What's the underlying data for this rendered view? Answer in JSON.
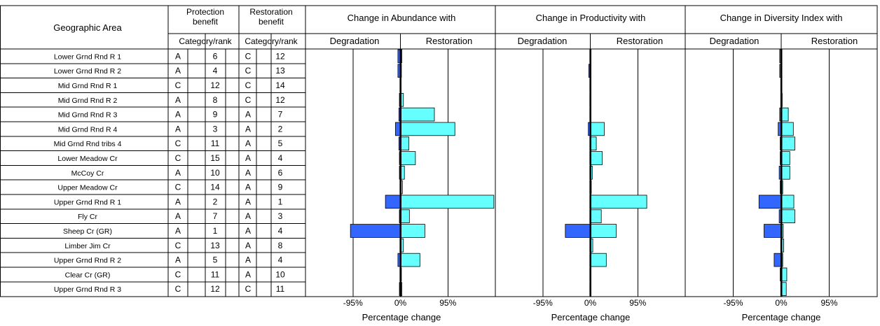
{
  "headers": {
    "geo_area": "Geographic Area",
    "protection_line1": "Protection",
    "protection_line2": "benefit",
    "restoration_line1": "Restoration",
    "restoration_line2": "benefit",
    "category_rank_protection": "Category/rank",
    "category_rank_restoration": "Category/rank",
    "degradation": "Degradation",
    "restoration": "Restoration"
  },
  "rows": [
    {
      "area": "Lower Grnd Rnd R 1",
      "p_cat": "A",
      "p_rank": "6",
      "r_cat": "C",
      "r_rank": "12"
    },
    {
      "area": "Lower Grnd Rnd R 2",
      "p_cat": "A",
      "p_rank": "4",
      "r_cat": "C",
      "r_rank": "13"
    },
    {
      "area": "Mid Grnd Rnd R 1",
      "p_cat": "C",
      "p_rank": "12",
      "r_cat": "C",
      "r_rank": "14"
    },
    {
      "area": "Mid Grnd Rnd R 2",
      "p_cat": "A",
      "p_rank": "8",
      "r_cat": "C",
      "r_rank": "12"
    },
    {
      "area": "Mid Grnd Rnd R 3",
      "p_cat": "A",
      "p_rank": "9",
      "r_cat": "A",
      "r_rank": "7"
    },
    {
      "area": "Mid Grnd Rnd R 4",
      "p_cat": "A",
      "p_rank": "3",
      "r_cat": "A",
      "r_rank": "2"
    },
    {
      "area": "Mid Grnd Rnd tribs 4",
      "p_cat": "C",
      "p_rank": "11",
      "r_cat": "A",
      "r_rank": "5"
    },
    {
      "area": "Lower Meadow Cr",
      "p_cat": "C",
      "p_rank": "15",
      "r_cat": "A",
      "r_rank": "4"
    },
    {
      "area": "McCoy Cr",
      "p_cat": "A",
      "p_rank": "10",
      "r_cat": "A",
      "r_rank": "6"
    },
    {
      "area": "Upper Meadow Cr",
      "p_cat": "C",
      "p_rank": "14",
      "r_cat": "A",
      "r_rank": "9"
    },
    {
      "area": "Upper Grnd Rnd R 1",
      "p_cat": "A",
      "p_rank": "2",
      "r_cat": "A",
      "r_rank": "1"
    },
    {
      "area": "Fly Cr",
      "p_cat": "A",
      "p_rank": "7",
      "r_cat": "A",
      "r_rank": "3"
    },
    {
      "area": "Sheep Cr (GR)",
      "p_cat": "A",
      "p_rank": "1",
      "r_cat": "A",
      "r_rank": "4"
    },
    {
      "area": "Limber Jim Cr",
      "p_cat": "C",
      "p_rank": "13",
      "r_cat": "A",
      "r_rank": "8"
    },
    {
      "area": "Upper Grnd Rnd R 2",
      "p_cat": "A",
      "p_rank": "5",
      "r_cat": "A",
      "r_rank": "4"
    },
    {
      "area": "Clear Cr (GR)",
      "p_cat": "C",
      "p_rank": "11",
      "r_cat": "A",
      "r_rank": "10"
    },
    {
      "area": "Upper Grnd Rnd R 3",
      "p_cat": "C",
      "p_rank": "12",
      "r_cat": "C",
      "r_rank": "11"
    }
  ],
  "colors": {
    "degradation": "#3366ff",
    "restoration": "#66ffff",
    "grid": "#000000"
  },
  "chart_data": [
    {
      "type": "bar",
      "orientation": "horizontal",
      "title": "Change in Abundance with",
      "xlabel": "Percentage change",
      "ticks": [
        "-95%",
        "0%",
        "95%"
      ],
      "tick_values": [
        -95,
        0,
        95
      ],
      "xlim": [
        -190,
        190
      ],
      "grid": true,
      "series": [
        {
          "name": "Degradation",
          "values": [
            -5,
            -5,
            -1,
            -2,
            -3,
            -10,
            -3,
            -2,
            -2,
            -1,
            -30,
            -2,
            -100,
            -1,
            -5,
            -1,
            -2
          ]
        },
        {
          "name": "Restoration",
          "values": [
            3,
            2,
            1,
            6,
            68,
            109,
            17,
            30,
            8,
            4,
            187,
            18,
            49,
            6,
            39,
            2,
            3
          ]
        }
      ]
    },
    {
      "type": "bar",
      "orientation": "horizontal",
      "title": "Change in Productivity with",
      "xlabel": "Percentage change",
      "ticks": [
        "-95%",
        "0%",
        "95%"
      ],
      "tick_values": [
        -95,
        0,
        95
      ],
      "xlim": [
        -190,
        190
      ],
      "grid": true,
      "series": [
        {
          "name": "Degradation",
          "values": [
            -1,
            -3,
            -1,
            -1,
            -1,
            -4,
            -1,
            -1,
            -1,
            -1,
            -1,
            -1,
            -50,
            -1,
            -1,
            -1,
            -1
          ]
        },
        {
          "name": "Restoration",
          "values": [
            0,
            0,
            0,
            0,
            0,
            28,
            12,
            24,
            4,
            2,
            113,
            22,
            52,
            5,
            32,
            1,
            0
          ]
        }
      ]
    },
    {
      "type": "bar",
      "orientation": "horizontal",
      "title": "Change in Diversity Index with",
      "xlabel": "Percentage change",
      "ticks": [
        "-95%",
        "0%",
        "95%"
      ],
      "tick_values": [
        -95,
        0,
        95
      ],
      "xlim": [
        -190,
        190
      ],
      "grid": true,
      "series": [
        {
          "name": "Degradation",
          "values": [
            -3,
            -3,
            -1,
            -1,
            -3,
            -6,
            -2,
            -2,
            -4,
            -2,
            -44,
            -4,
            -34,
            -1,
            -14,
            -2,
            -1
          ]
        },
        {
          "name": "Restoration",
          "values": [
            1,
            1,
            0,
            2,
            14,
            24,
            27,
            17,
            17,
            3,
            25,
            27,
            4,
            5,
            3,
            11,
            10
          ]
        }
      ]
    }
  ]
}
